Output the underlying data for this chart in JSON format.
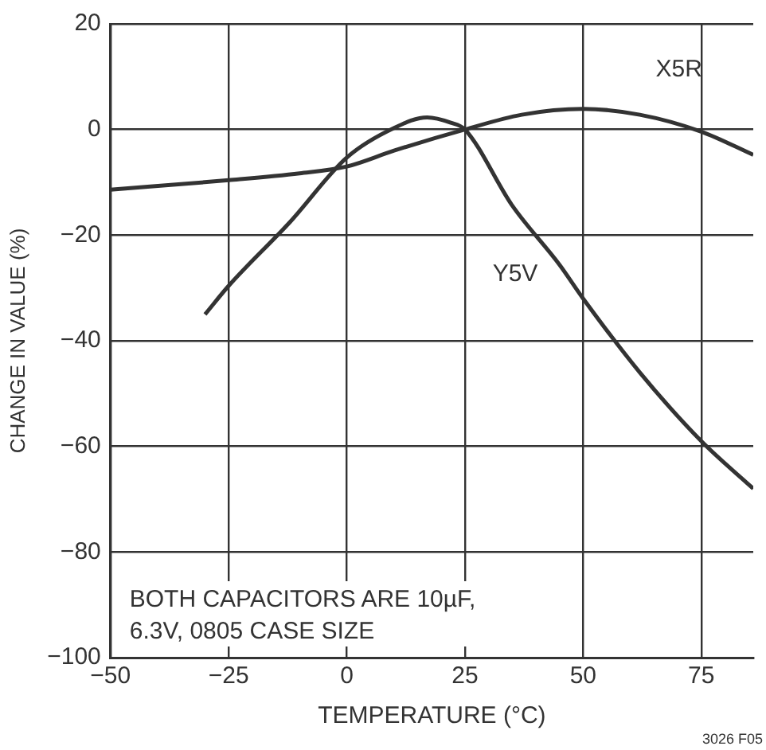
{
  "chart_data": {
    "type": "line",
    "xlabel": "TEMPERATURE (°C)",
    "ylabel": "CHANGE IN VALUE (%)",
    "xlim": [
      -50,
      86
    ],
    "xticks": [
      -50,
      -25,
      0,
      25,
      50,
      75
    ],
    "ylim": [
      -100,
      20
    ],
    "yticks": [
      -100,
      -80,
      -60,
      -40,
      -20,
      0,
      20
    ],
    "grid": true,
    "legend": false,
    "marker": "none",
    "line_style": "solid",
    "series": [
      {
        "name": "X5R",
        "color": "#333333",
        "x": [
          -50,
          -25,
          -10,
          0,
          10,
          25,
          37,
          50,
          62,
          75,
          86
        ],
        "values": [
          -11.4,
          -9.6,
          -8.3,
          -7,
          -4,
          0,
          2.8,
          3.9,
          2.8,
          -0.4,
          -4.8
        ]
      },
      {
        "name": "Y5V",
        "color": "#333333",
        "x": [
          -30,
          -25,
          -12,
          0,
          10,
          17,
          22,
          25,
          35,
          45,
          50,
          62,
          75,
          86
        ],
        "values": [
          -35,
          -29.6,
          -17.5,
          -5.3,
          0.3,
          2.3,
          1.3,
          0,
          -14.4,
          -25.6,
          -32,
          -46,
          -59,
          -68
        ]
      }
    ],
    "annotations": [
      "BOTH CAPACITORS ARE 10µF, 6.3V, 0805 CASE SIZE",
      "3026 F05"
    ]
  }
}
